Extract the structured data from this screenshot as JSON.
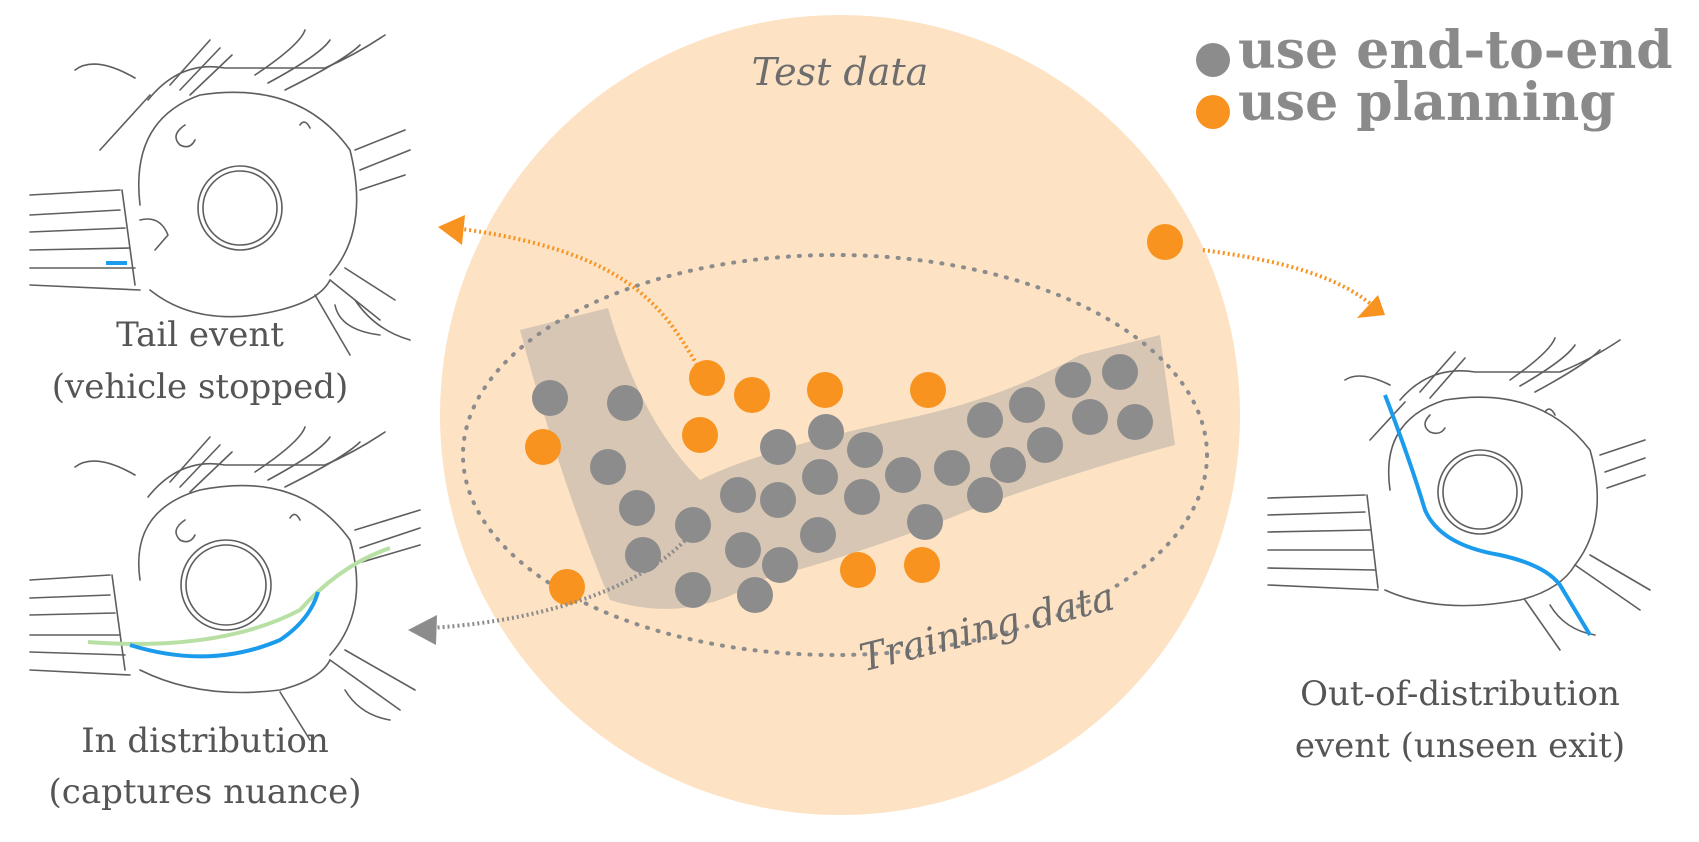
{
  "labels": {
    "test_data": "Test data",
    "training_data": "Training data"
  },
  "legend": {
    "items": [
      {
        "label": "use end-to-end",
        "color": "#8c8c8c"
      },
      {
        "label": "use planning",
        "color": "#f7931e"
      }
    ]
  },
  "panels": {
    "tail": {
      "line1": "Tail event",
      "line2": "(vehicle stopped)"
    },
    "in_dist": {
      "line1": "In distribution",
      "line2": "(captures nuance)"
    },
    "ood": {
      "line1": "Out-of-distribution",
      "line2": "event (unseen exit)"
    }
  },
  "colors": {
    "test_region": "#fde2c4",
    "training_band": "#d3c3b1",
    "end_to_end_dot": "#8c8c8c",
    "planning_dot": "#f7931e",
    "planned_path": "#1b9bec",
    "reference_path": "#b8e0a4"
  }
}
